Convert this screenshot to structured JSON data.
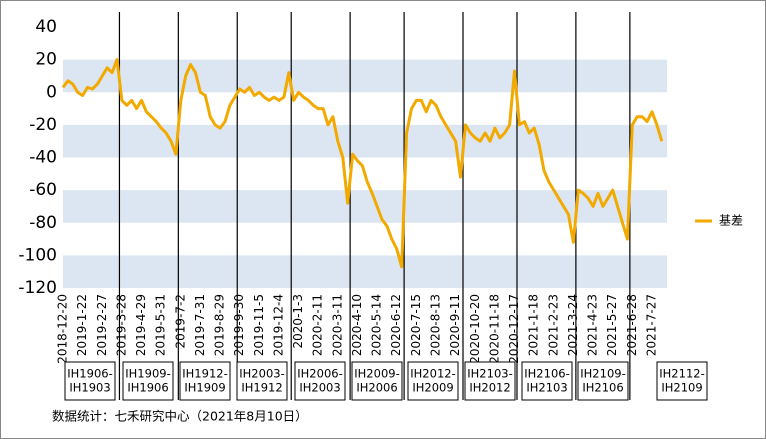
{
  "chart_data": {
    "type": "line",
    "categories": [
      "2018-12-20",
      null,
      null,
      null,
      "2019-1-22",
      null,
      null,
      null,
      "2019-2-27",
      null,
      null,
      null,
      "2019-3-28",
      null,
      null,
      null,
      "2019-4-29",
      null,
      null,
      null,
      "2019-5-31",
      null,
      null,
      null,
      "2019-7-2",
      null,
      null,
      null,
      "2019-7-31",
      null,
      null,
      null,
      "2019-8-29",
      null,
      null,
      null,
      "2019-9-30",
      null,
      null,
      null,
      "2019-11-5",
      null,
      null,
      null,
      "2019-12-4",
      null,
      null,
      null,
      "2020-1-3",
      null,
      null,
      null,
      "2020-2-11",
      null,
      null,
      null,
      "2020-3-11",
      null,
      null,
      null,
      "2020-4-10",
      null,
      null,
      null,
      "2020-5-14",
      null,
      null,
      null,
      "2020-6-12",
      null,
      null,
      null,
      "2020-7-15",
      null,
      null,
      null,
      "2020-8-13",
      null,
      null,
      null,
      "2020-9-11",
      null,
      null,
      null,
      "2020-10-20",
      null,
      null,
      null,
      "2020-11-18",
      null,
      null,
      null,
      "2020-12-17",
      null,
      null,
      null,
      "2021-1-18",
      null,
      null,
      null,
      "2021-2-23",
      null,
      null,
      null,
      "2021-3-24",
      null,
      null,
      null,
      "2021-4-23",
      null,
      null,
      null,
      "2021-5-27",
      null,
      null,
      null,
      "2021-6-28",
      null,
      null,
      null,
      "2021-7-27",
      null,
      null
    ],
    "series": [
      {
        "name": "基差",
        "color": "#f2a900",
        "values": [
          3,
          7,
          5,
          0,
          -2,
          3,
          2,
          5,
          10,
          15,
          12,
          20,
          -5,
          -8,
          -5,
          -10,
          -5,
          -12,
          -15,
          -18,
          -22,
          -25,
          -30,
          -38,
          -5,
          10,
          17,
          12,
          0,
          -2,
          -15,
          -20,
          -22,
          -18,
          -8,
          -3,
          2,
          0,
          3,
          -2,
          0,
          -3,
          -5,
          -3,
          -5,
          -3,
          12,
          -5,
          0,
          -3,
          -5,
          -8,
          -10,
          -10,
          -20,
          -15,
          -30,
          -40,
          -68,
          -38,
          -42,
          -45,
          -55,
          -62,
          -70,
          -78,
          -82,
          -90,
          -96,
          -107,
          -25,
          -10,
          -5,
          -5,
          -12,
          -5,
          -8,
          -15,
          -20,
          -25,
          -30,
          -52,
          -20,
          -25,
          -28,
          -30,
          -25,
          -30,
          -22,
          -28,
          -25,
          -20,
          13,
          -20,
          -18,
          -25,
          -22,
          -32,
          -48,
          -55,
          -60,
          -65,
          -70,
          -75,
          -92,
          -60,
          -62,
          -65,
          -70,
          -62,
          -70,
          -65,
          -60,
          -70,
          -80,
          -90,
          -20,
          -15,
          -15,
          -18,
          -12,
          -20,
          -30
        ]
      }
    ],
    "ylim": [
      -120,
      40
    ],
    "yticks": [
      40,
      20,
      0,
      -20,
      -40,
      -60,
      -80,
      -100,
      -120
    ],
    "contracts": [
      [
        "IH1906-",
        "IH1903"
      ],
      [
        "IH1909-",
        "IH1906"
      ],
      [
        "IH1912-",
        "IH1909"
      ],
      [
        "IH2003-",
        "IH1912"
      ],
      [
        "IH2006-",
        "IH2003"
      ],
      [
        "IH2009-",
        "IH2006"
      ],
      [
        "IH2012-",
        "IH2009"
      ],
      [
        "IH2103-",
        "IH2012"
      ],
      [
        "IH2106-",
        "IH2103"
      ],
      [
        "IH2109-",
        "IH2106"
      ],
      [
        "IH2112-",
        "IH2109"
      ]
    ],
    "source": "数据统计：七禾研究中心（2021年8月10日）"
  }
}
